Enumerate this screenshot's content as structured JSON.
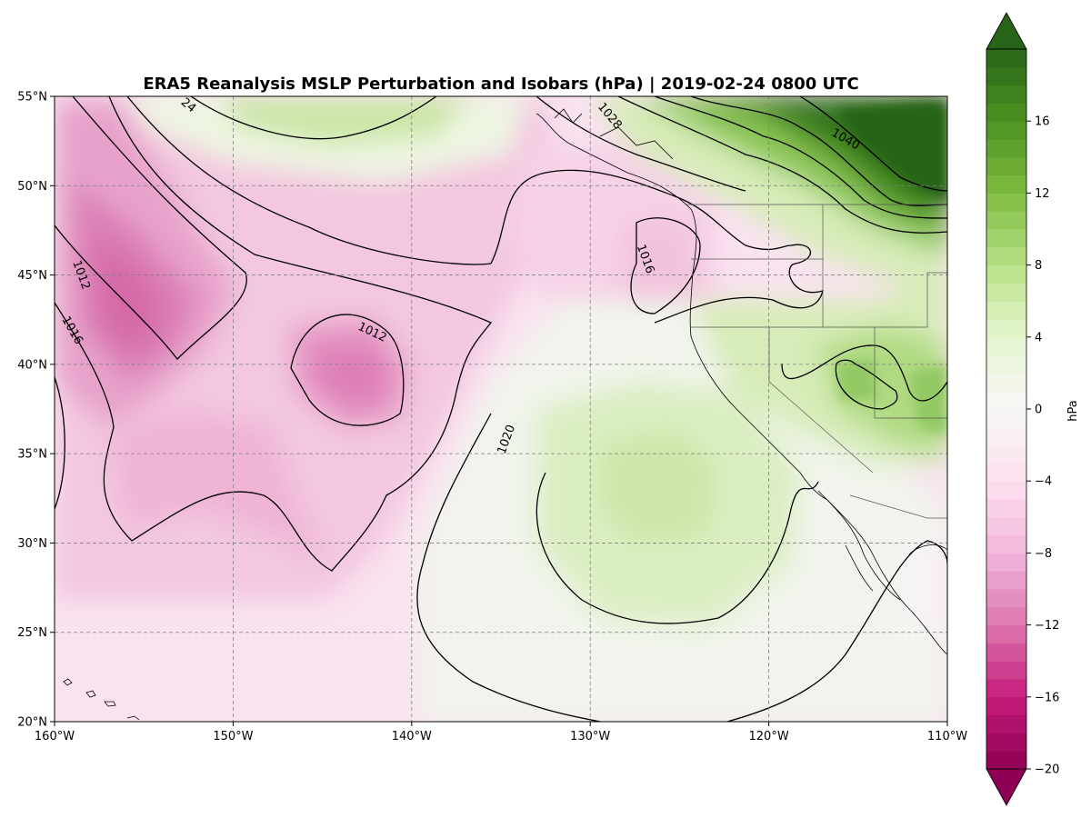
{
  "title": "ERA5 Reanalysis MSLP Perturbation and Isobars (hPa) | 2019-02-24 0800 UTC",
  "map": {
    "lon_range": [
      -160,
      -110
    ],
    "lat_range": [
      20,
      55
    ],
    "lon_ticks": [
      {
        "value": -160,
        "label": "160°W"
      },
      {
        "value": -150,
        "label": "150°W"
      },
      {
        "value": -140,
        "label": "140°W"
      },
      {
        "value": -130,
        "label": "130°W"
      },
      {
        "value": -120,
        "label": "120°W"
      },
      {
        "value": -110,
        "label": "110°W"
      }
    ],
    "lat_ticks": [
      {
        "value": 20,
        "label": "20°N"
      },
      {
        "value": 25,
        "label": "25°N"
      },
      {
        "value": 30,
        "label": "30°N"
      },
      {
        "value": 35,
        "label": "35°N"
      },
      {
        "value": 40,
        "label": "40°N"
      },
      {
        "value": 45,
        "label": "45°N"
      },
      {
        "value": 50,
        "label": "50°N"
      },
      {
        "value": 55,
        "label": "55°N"
      }
    ],
    "gridlines": true,
    "isobar_labels": [
      {
        "text": "1012",
        "lon": -158.5,
        "lat": 45.0
      },
      {
        "text": "1016",
        "lon": -159.0,
        "lat": 41.9
      },
      {
        "text": "1012",
        "lon": -142.2,
        "lat": 41.8
      },
      {
        "text": "1016",
        "lon": -126.9,
        "lat": 45.9
      },
      {
        "text": "1020",
        "lon": -134.7,
        "lat": 35.8
      },
      {
        "text": "1040",
        "lon": -115.7,
        "lat": 52.6
      },
      {
        "text": "1028",
        "lon": -128.9,
        "lat": 53.9
      },
      {
        "text": "24",
        "lon": -152.5,
        "lat": 54.5
      }
    ]
  },
  "colorbar": {
    "label": "hPa",
    "vmin": -20,
    "vmax": 20,
    "ticks": [
      {
        "value": -20,
        "label": "−20"
      },
      {
        "value": -16,
        "label": "−16"
      },
      {
        "value": -12,
        "label": "−12"
      },
      {
        "value": -8,
        "label": "−8"
      },
      {
        "value": -4,
        "label": "−4"
      },
      {
        "value": 0,
        "label": "0"
      },
      {
        "value": 4,
        "label": "4"
      },
      {
        "value": 8,
        "label": "8"
      },
      {
        "value": 12,
        "label": "12"
      },
      {
        "value": 16,
        "label": "16"
      }
    ],
    "colormap": "PiYG",
    "colors": [
      "#8e0152",
      "#c51b7d",
      "#de77ae",
      "#f1b6da",
      "#fde0ef",
      "#f7f7f7",
      "#e6f5d0",
      "#b8e186",
      "#7fbc41",
      "#4d9221",
      "#276419"
    ]
  }
}
